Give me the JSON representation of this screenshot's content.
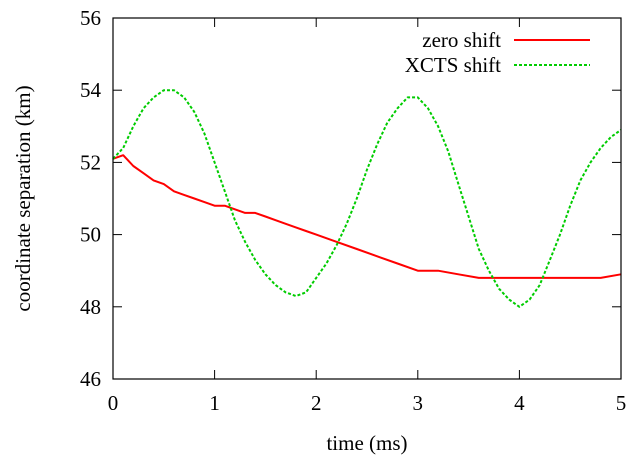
{
  "chart_data": {
    "type": "line",
    "xlabel": "time (ms)",
    "ylabel": "coordinate separation (km)",
    "xlim": [
      0,
      5
    ],
    "ylim": [
      46,
      56
    ],
    "xticks": [
      "0",
      "1",
      "2",
      "3",
      "4",
      "5"
    ],
    "yticks": [
      "46",
      "48",
      "50",
      "52",
      "54",
      "56"
    ],
    "grid": false,
    "legend_position": "top-right",
    "series": [
      {
        "name": "zero shift",
        "color": "#ff0000",
        "style": "solid",
        "x": [
          0.0,
          0.1,
          0.2,
          0.3,
          0.4,
          0.5,
          0.6,
          0.7,
          0.8,
          0.9,
          1.0,
          1.1,
          1.2,
          1.3,
          1.4,
          1.5,
          1.6,
          1.7,
          1.8,
          1.9,
          2.0,
          2.2,
          2.4,
          2.6,
          2.8,
          3.0,
          3.2,
          3.4,
          3.6,
          3.8,
          4.0,
          4.2,
          4.4,
          4.6,
          4.8,
          5.0
        ],
        "y": [
          52.1,
          52.2,
          51.9,
          51.7,
          51.5,
          51.4,
          51.2,
          51.1,
          51.0,
          50.9,
          50.8,
          50.8,
          50.7,
          50.6,
          50.6,
          50.5,
          50.4,
          50.3,
          50.2,
          50.1,
          50.0,
          49.8,
          49.6,
          49.4,
          49.2,
          49.0,
          49.0,
          48.9,
          48.8,
          48.8,
          48.8,
          48.8,
          48.8,
          48.8,
          48.8,
          48.9
        ]
      },
      {
        "name": "XCTS shift",
        "color": "#00cc00",
        "style": "dashed",
        "x": [
          0.0,
          0.1,
          0.2,
          0.3,
          0.4,
          0.5,
          0.6,
          0.7,
          0.8,
          0.9,
          1.0,
          1.1,
          1.2,
          1.3,
          1.4,
          1.5,
          1.6,
          1.7,
          1.8,
          1.9,
          2.0,
          2.1,
          2.2,
          2.3,
          2.4,
          2.5,
          2.6,
          2.7,
          2.8,
          2.9,
          3.0,
          3.1,
          3.2,
          3.3,
          3.4,
          3.5,
          3.6,
          3.7,
          3.8,
          3.9,
          4.0,
          4.1,
          4.2,
          4.3,
          4.4,
          4.5,
          4.6,
          4.7,
          4.8,
          4.9,
          5.0
        ],
        "y": [
          52.1,
          52.4,
          53.0,
          53.5,
          53.8,
          54.0,
          54.0,
          53.8,
          53.4,
          52.8,
          52.0,
          51.2,
          50.4,
          49.8,
          49.3,
          48.9,
          48.6,
          48.4,
          48.3,
          48.4,
          48.8,
          49.2,
          49.7,
          50.3,
          51.0,
          51.8,
          52.5,
          53.1,
          53.5,
          53.8,
          53.8,
          53.5,
          53.0,
          52.3,
          51.4,
          50.5,
          49.6,
          49.0,
          48.5,
          48.2,
          48.0,
          48.2,
          48.6,
          49.3,
          50.0,
          50.8,
          51.5,
          52.0,
          52.4,
          52.7,
          52.9
        ]
      }
    ]
  }
}
